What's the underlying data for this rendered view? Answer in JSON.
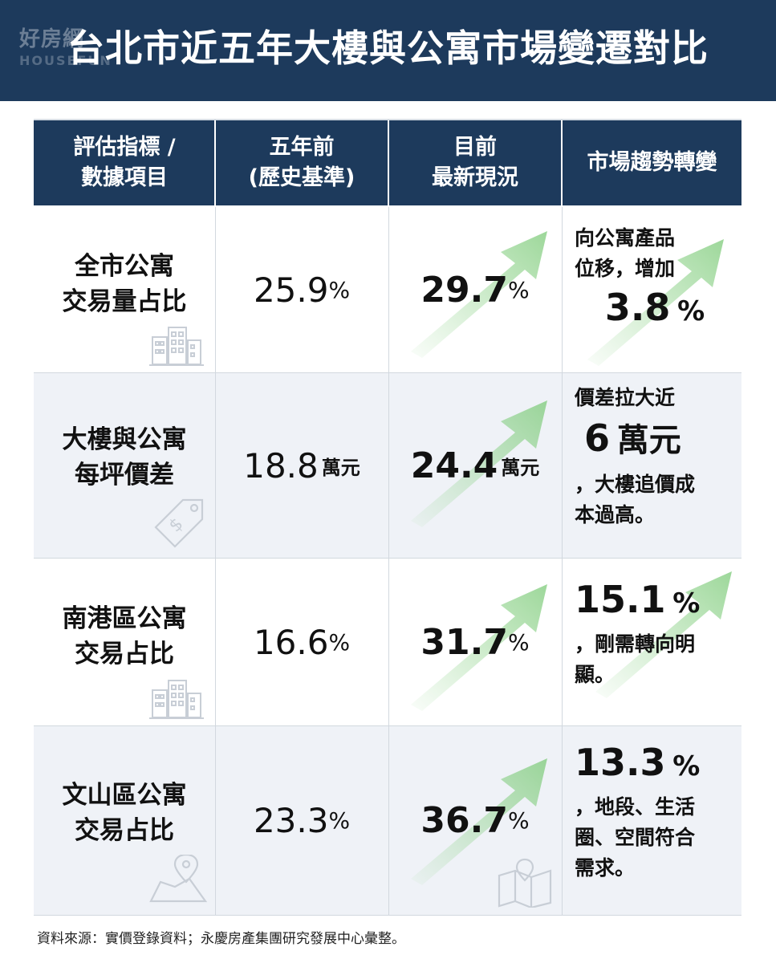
{
  "header": {
    "watermark": "好房網",
    "watermark_sub": "HOUSEFUN",
    "title": "台北市近五年大樓與公寓市場變遷對比"
  },
  "table": {
    "columns": [
      "評估指標 /\n數據項目",
      "五年前\n(歷史基準)",
      "目前\n最新現況",
      "市場趨勢轉變"
    ],
    "rows": [
      {
        "label": "全市公寓\n交易量占比",
        "prev_value": "25.9",
        "prev_unit": "%",
        "cur_value": "29.7",
        "cur_unit": "%",
        "trend_pre": "向公寓產品\n位移，增加",
        "trend_big": "3.8",
        "trend_big_unit": "%",
        "trend_post": "",
        "icon": "building-icon"
      },
      {
        "label": "大樓與公寓\n每坪價差",
        "prev_value": "18.8",
        "prev_unit": "萬元",
        "cur_value": "24.4",
        "cur_unit": "萬元",
        "trend_pre": "價差拉大近",
        "trend_big": "6",
        "trend_big_unit": "萬元",
        "trend_post": "，大樓追價成\n本過高。",
        "icon": "price-tag-icon"
      },
      {
        "label": "南港區公寓\n交易占比",
        "prev_value": "16.6",
        "prev_unit": "%",
        "cur_value": "31.7",
        "cur_unit": "%",
        "trend_pre": "",
        "trend_big": "15.1",
        "trend_big_unit": "%",
        "trend_post": "，剛需轉向明\n顯。",
        "icon": "building-icon"
      },
      {
        "label": "文山區公寓\n交易占比",
        "prev_value": "23.3",
        "prev_unit": "%",
        "cur_value": "36.7",
        "cur_unit": "%",
        "trend_pre": "",
        "trend_big": "13.3",
        "trend_big_unit": "%",
        "trend_post": "，地段、生活\n圈、空間符合\n需求。",
        "icon": "map-pin-icon"
      }
    ]
  },
  "footer": {
    "source": "資料來源：實價登錄資料；永慶房產集團研究發展中心彙整。"
  },
  "colors": {
    "navy": "#1d3a5c",
    "alt_row": "#eff2f7",
    "arrow_green": "#8fd48a"
  }
}
